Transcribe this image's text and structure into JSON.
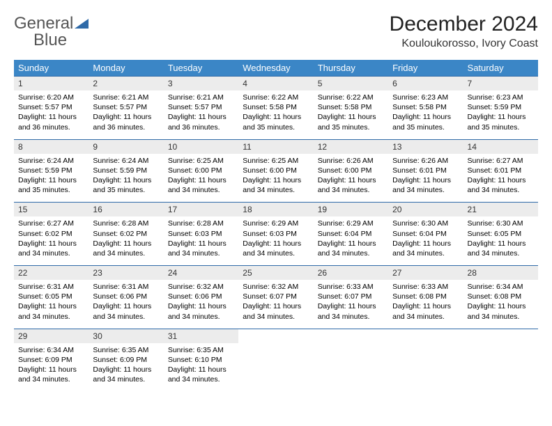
{
  "logo": {
    "text_gray": "General",
    "text_blue": "Blue"
  },
  "title": "December 2024",
  "location": "Kouloukorosso, Ivory Coast",
  "colors": {
    "header_bg": "#3b86c6",
    "header_fg": "#ffffff",
    "daynum_bg": "#ececec",
    "rule": "#2f6aa8",
    "logo_gray": "#555555",
    "logo_blue": "#2f6aa8"
  },
  "day_headers": [
    "Sunday",
    "Monday",
    "Tuesday",
    "Wednesday",
    "Thursday",
    "Friday",
    "Saturday"
  ],
  "weeks": [
    [
      {
        "n": "1",
        "sr": "6:20 AM",
        "ss": "5:57 PM",
        "dl": "11 hours and 36 minutes."
      },
      {
        "n": "2",
        "sr": "6:21 AM",
        "ss": "5:57 PM",
        "dl": "11 hours and 36 minutes."
      },
      {
        "n": "3",
        "sr": "6:21 AM",
        "ss": "5:57 PM",
        "dl": "11 hours and 36 minutes."
      },
      {
        "n": "4",
        "sr": "6:22 AM",
        "ss": "5:58 PM",
        "dl": "11 hours and 35 minutes."
      },
      {
        "n": "5",
        "sr": "6:22 AM",
        "ss": "5:58 PM",
        "dl": "11 hours and 35 minutes."
      },
      {
        "n": "6",
        "sr": "6:23 AM",
        "ss": "5:58 PM",
        "dl": "11 hours and 35 minutes."
      },
      {
        "n": "7",
        "sr": "6:23 AM",
        "ss": "5:59 PM",
        "dl": "11 hours and 35 minutes."
      }
    ],
    [
      {
        "n": "8",
        "sr": "6:24 AM",
        "ss": "5:59 PM",
        "dl": "11 hours and 35 minutes."
      },
      {
        "n": "9",
        "sr": "6:24 AM",
        "ss": "5:59 PM",
        "dl": "11 hours and 35 minutes."
      },
      {
        "n": "10",
        "sr": "6:25 AM",
        "ss": "6:00 PM",
        "dl": "11 hours and 34 minutes."
      },
      {
        "n": "11",
        "sr": "6:25 AM",
        "ss": "6:00 PM",
        "dl": "11 hours and 34 minutes."
      },
      {
        "n": "12",
        "sr": "6:26 AM",
        "ss": "6:00 PM",
        "dl": "11 hours and 34 minutes."
      },
      {
        "n": "13",
        "sr": "6:26 AM",
        "ss": "6:01 PM",
        "dl": "11 hours and 34 minutes."
      },
      {
        "n": "14",
        "sr": "6:27 AM",
        "ss": "6:01 PM",
        "dl": "11 hours and 34 minutes."
      }
    ],
    [
      {
        "n": "15",
        "sr": "6:27 AM",
        "ss": "6:02 PM",
        "dl": "11 hours and 34 minutes."
      },
      {
        "n": "16",
        "sr": "6:28 AM",
        "ss": "6:02 PM",
        "dl": "11 hours and 34 minutes."
      },
      {
        "n": "17",
        "sr": "6:28 AM",
        "ss": "6:03 PM",
        "dl": "11 hours and 34 minutes."
      },
      {
        "n": "18",
        "sr": "6:29 AM",
        "ss": "6:03 PM",
        "dl": "11 hours and 34 minutes."
      },
      {
        "n": "19",
        "sr": "6:29 AM",
        "ss": "6:04 PM",
        "dl": "11 hours and 34 minutes."
      },
      {
        "n": "20",
        "sr": "6:30 AM",
        "ss": "6:04 PM",
        "dl": "11 hours and 34 minutes."
      },
      {
        "n": "21",
        "sr": "6:30 AM",
        "ss": "6:05 PM",
        "dl": "11 hours and 34 minutes."
      }
    ],
    [
      {
        "n": "22",
        "sr": "6:31 AM",
        "ss": "6:05 PM",
        "dl": "11 hours and 34 minutes."
      },
      {
        "n": "23",
        "sr": "6:31 AM",
        "ss": "6:06 PM",
        "dl": "11 hours and 34 minutes."
      },
      {
        "n": "24",
        "sr": "6:32 AM",
        "ss": "6:06 PM",
        "dl": "11 hours and 34 minutes."
      },
      {
        "n": "25",
        "sr": "6:32 AM",
        "ss": "6:07 PM",
        "dl": "11 hours and 34 minutes."
      },
      {
        "n": "26",
        "sr": "6:33 AM",
        "ss": "6:07 PM",
        "dl": "11 hours and 34 minutes."
      },
      {
        "n": "27",
        "sr": "6:33 AM",
        "ss": "6:08 PM",
        "dl": "11 hours and 34 minutes."
      },
      {
        "n": "28",
        "sr": "6:34 AM",
        "ss": "6:08 PM",
        "dl": "11 hours and 34 minutes."
      }
    ],
    [
      {
        "n": "29",
        "sr": "6:34 AM",
        "ss": "6:09 PM",
        "dl": "11 hours and 34 minutes."
      },
      {
        "n": "30",
        "sr": "6:35 AM",
        "ss": "6:09 PM",
        "dl": "11 hours and 34 minutes."
      },
      {
        "n": "31",
        "sr": "6:35 AM",
        "ss": "6:10 PM",
        "dl": "11 hours and 34 minutes."
      },
      null,
      null,
      null,
      null
    ]
  ],
  "labels": {
    "sunrise": "Sunrise:",
    "sunset": "Sunset:",
    "daylight": "Daylight:"
  }
}
